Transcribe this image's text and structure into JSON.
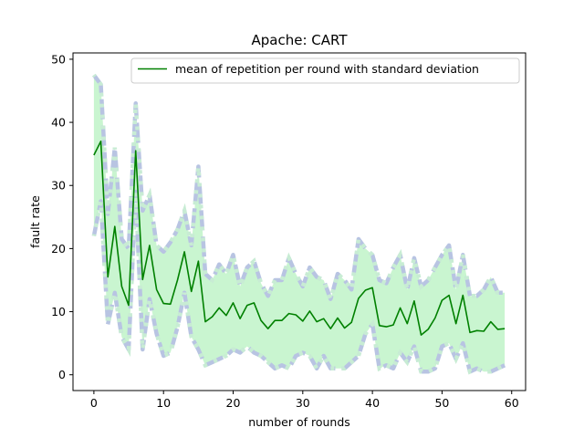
{
  "chart_data": {
    "type": "line",
    "title": "Apache: CART",
    "xlabel": "number of rounds",
    "ylabel": "fault rate",
    "xlim": [
      -3,
      62
    ],
    "ylim": [
      -2.5,
      51
    ],
    "xticks": [
      0,
      10,
      20,
      30,
      40,
      50,
      60
    ],
    "yticks": [
      0,
      10,
      20,
      30,
      40,
      50
    ],
    "grid": false,
    "legend_position": "top-right",
    "colors": {
      "mean_line": "#008000",
      "band_fill": "#c9f5d0",
      "band_edge_dash": "#b8c4e2",
      "band_edge_dot": "#c8ecd4"
    },
    "series": [
      {
        "name": "mean of repetition per round with standard deviation",
        "x": [
          0,
          1,
          2,
          3,
          4,
          5,
          6,
          7,
          8,
          9,
          10,
          11,
          12,
          13,
          14,
          15,
          16,
          17,
          18,
          19,
          20,
          21,
          22,
          23,
          24,
          25,
          26,
          27,
          28,
          29,
          30,
          31,
          32,
          33,
          34,
          35,
          36,
          37,
          38,
          39,
          40,
          41,
          42,
          43,
          44,
          45,
          46,
          47,
          48,
          49,
          50,
          51,
          52,
          53,
          54,
          55,
          56,
          57,
          58,
          59
        ],
        "mean": [
          34.8,
          37.0,
          15.5,
          23.5,
          14.0,
          11.0,
          35.5,
          15.1,
          20.5,
          13.5,
          11.3,
          11.2,
          15.0,
          19.5,
          13.2,
          18.0,
          8.4,
          9.2,
          10.6,
          9.4,
          11.4,
          8.9,
          11.0,
          11.4,
          8.6,
          7.3,
          8.6,
          8.6,
          9.7,
          9.5,
          8.5,
          10.1,
          8.4,
          8.9,
          7.3,
          9.0,
          7.4,
          8.3,
          12.1,
          13.4,
          13.8,
          7.8,
          7.6,
          7.9,
          10.6,
          8.1,
          11.7,
          6.3,
          7.2,
          9.0,
          11.8,
          12.6,
          8.1,
          12.6,
          6.7,
          7.0,
          6.9,
          8.4,
          7.2,
          7.3
        ],
        "upper": [
          47.5,
          46.0,
          25.5,
          36.0,
          21.5,
          20.0,
          43.0,
          26.0,
          28.5,
          20.5,
          19.5,
          21.0,
          23.0,
          26.0,
          20.5,
          33.0,
          16.0,
          15.0,
          17.5,
          16.0,
          19.0,
          14.0,
          17.0,
          18.0,
          14.5,
          12.5,
          15.0,
          15.0,
          18.5,
          16.0,
          14.0,
          17.0,
          15.5,
          15.0,
          12.0,
          16.0,
          15.0,
          13.5,
          21.5,
          20.0,
          19.0,
          15.0,
          14.5,
          17.0,
          19.0,
          13.5,
          18.5,
          14.0,
          15.0,
          17.0,
          19.0,
          20.5,
          13.5,
          19.0,
          12.5,
          12.5,
          13.5,
          15.5,
          13.0,
          13.0
        ],
        "lower": [
          22.0,
          27.5,
          8.0,
          13.0,
          6.0,
          4.0,
          29.0,
          4.0,
          12.0,
          6.5,
          3.0,
          3.5,
          7.5,
          13.0,
          6.0,
          4.0,
          1.5,
          2.0,
          2.5,
          3.0,
          4.0,
          3.5,
          4.5,
          3.5,
          3.0,
          2.0,
          1.0,
          1.5,
          1.0,
          3.0,
          3.5,
          3.0,
          1.0,
          3.0,
          1.0,
          1.0,
          1.0,
          2.0,
          3.0,
          6.5,
          8.0,
          1.0,
          1.5,
          1.0,
          3.5,
          2.0,
          4.5,
          0.5,
          0.5,
          1.0,
          4.5,
          5.0,
          2.5,
          5.0,
          0.5,
          1.0,
          0.5,
          0.5,
          1.0,
          1.5
        ]
      }
    ]
  }
}
